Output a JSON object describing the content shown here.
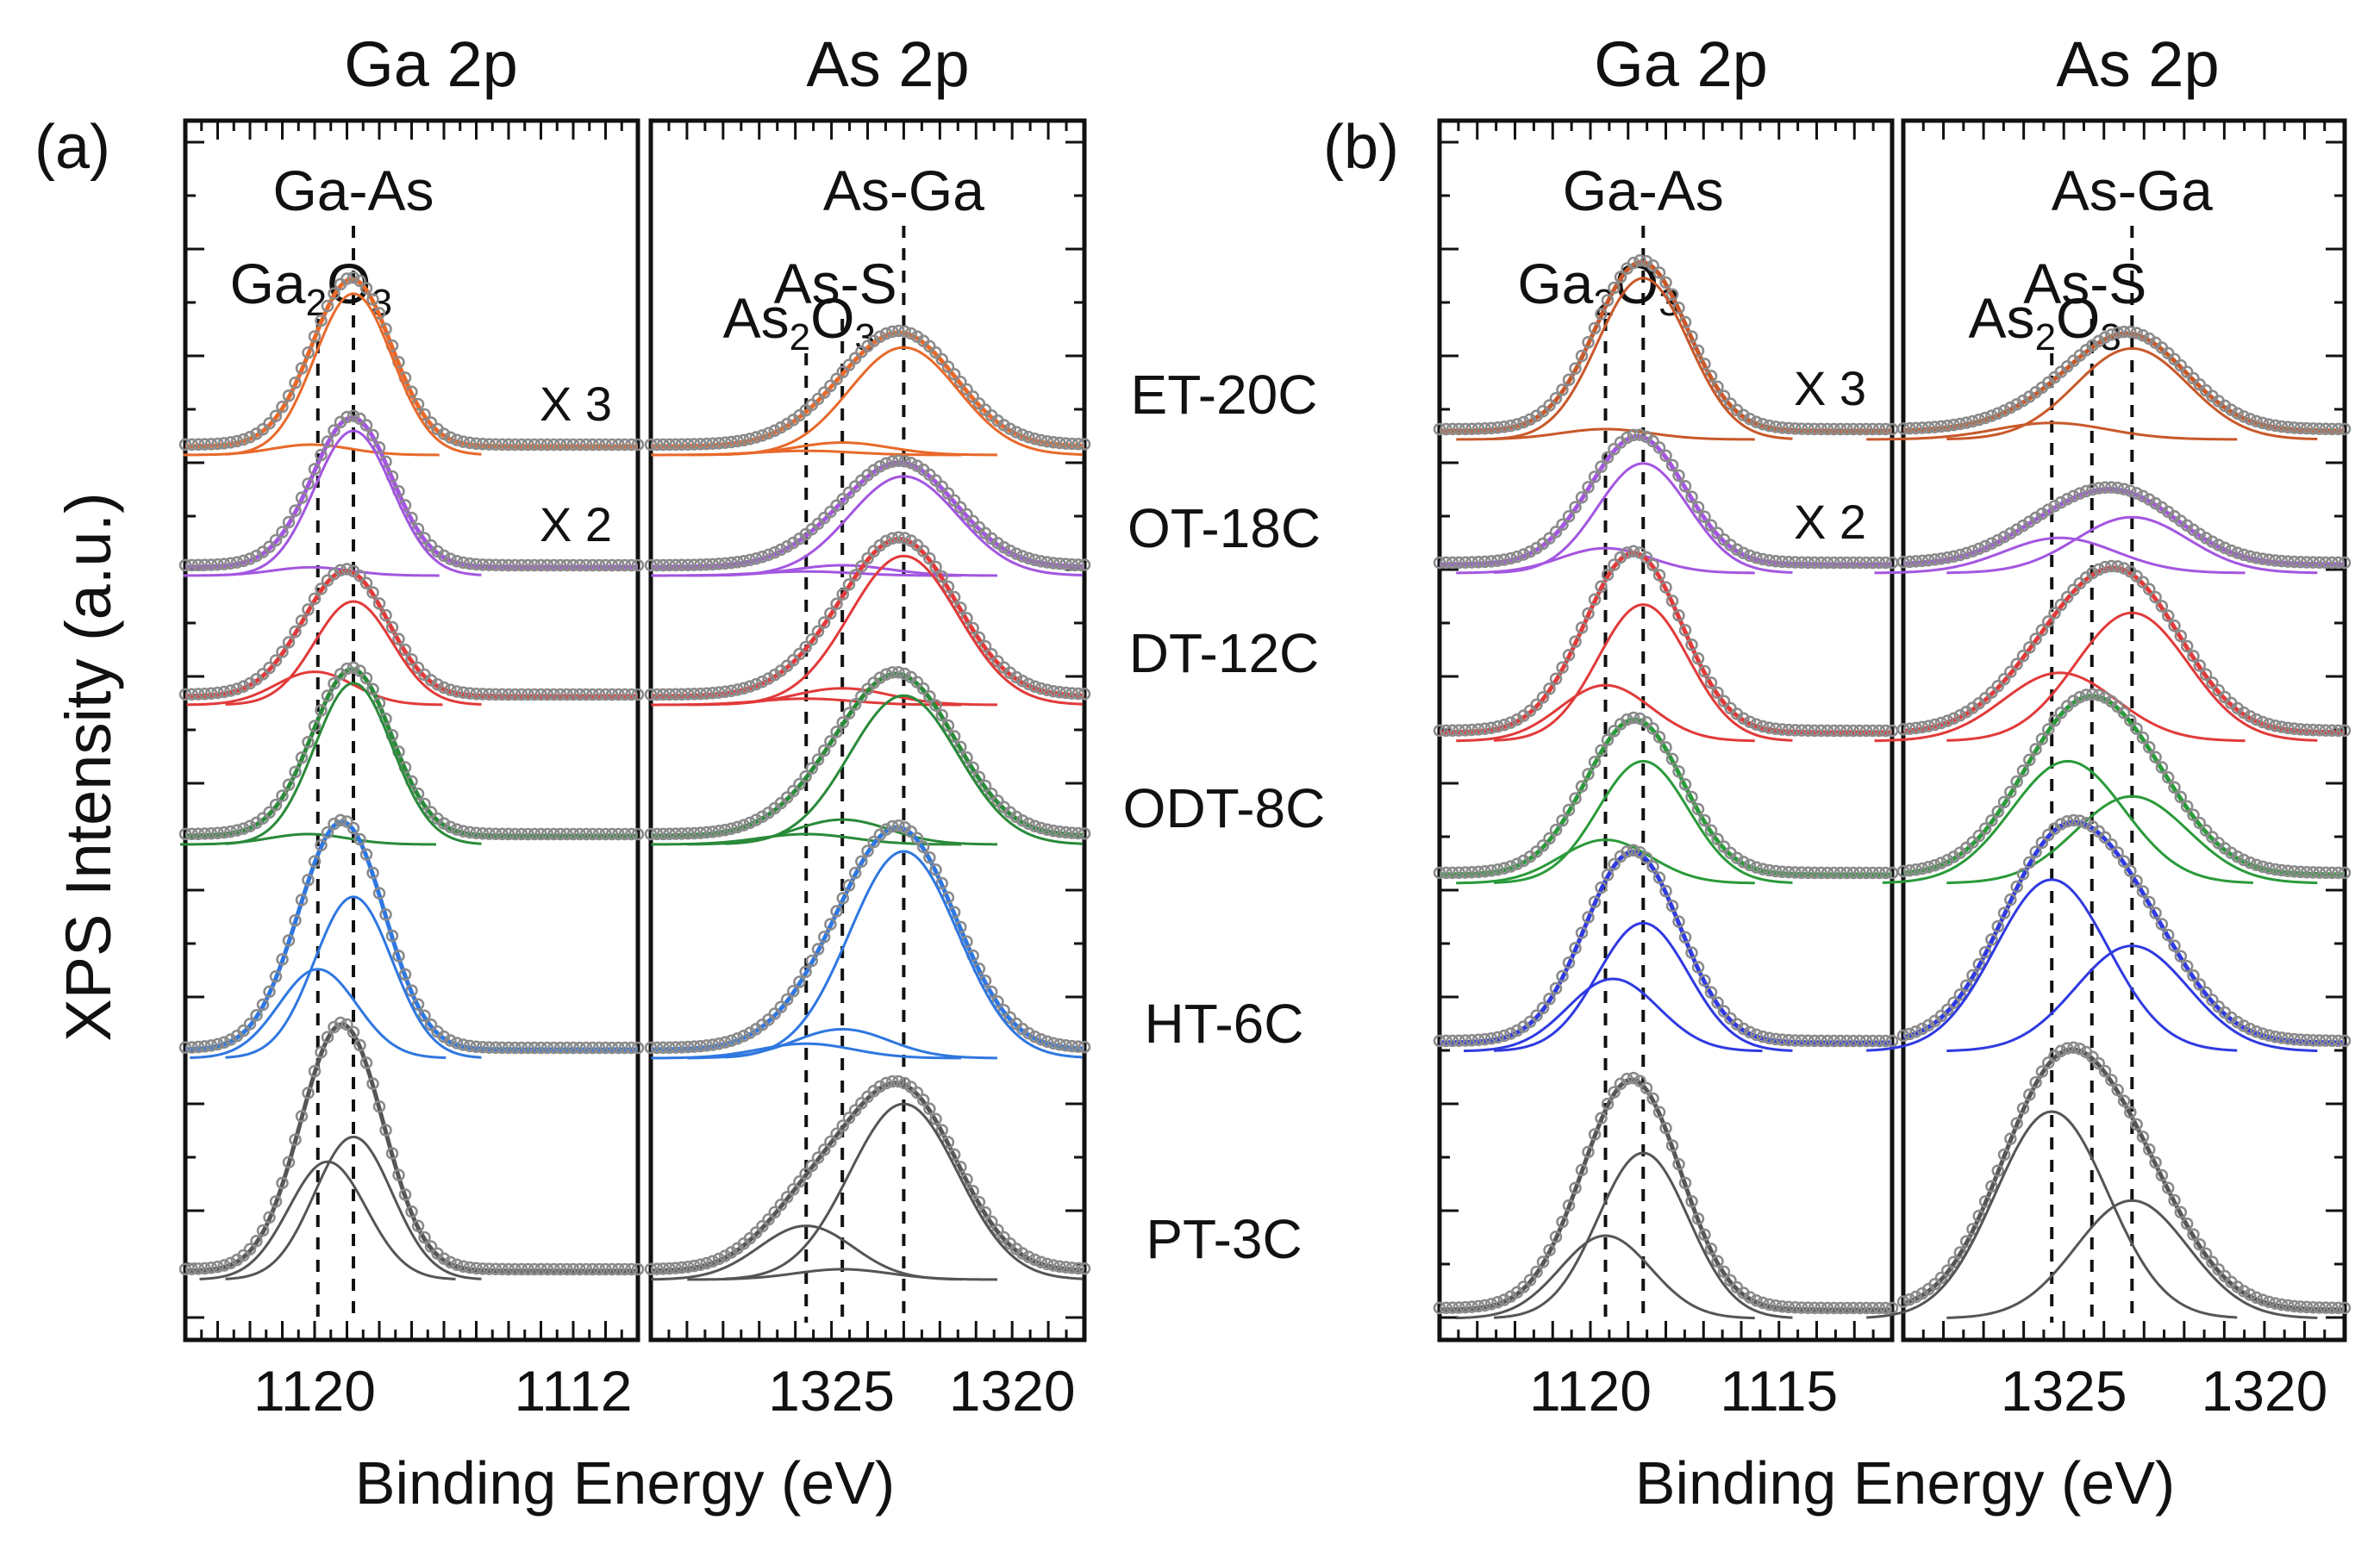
{
  "figure": {
    "ylabel": "XPS Intensity (a.u.)",
    "xlabel": "Binding Energy (eV)",
    "sample_labels": [
      "ET-20C",
      "OT-18C",
      "DT-12C",
      "ODT-8C",
      "HT-6C",
      "PT-3C"
    ],
    "panel_a": {
      "panel_label": "(a)",
      "ga_title": "Ga 2p",
      "as_title": "As 2p",
      "ga_peaks": [
        {
          "label": "Ga-As",
          "energy": 1118.8,
          "sub": ""
        },
        {
          "label": "Ga",
          "energy": 1119.9,
          "sub": "2",
          "label2": "O",
          "sub2": "3"
        }
      ],
      "as_peaks": [
        {
          "label": "As-Ga",
          "energy": 1323.0,
          "sub": ""
        },
        {
          "label": "As-S",
          "energy": 1324.7,
          "sub": ""
        },
        {
          "label": "As",
          "energy": 1325.7,
          "sub": "2",
          "label2": "O",
          "sub2": "3"
        }
      ],
      "ga_ticks": [
        "1120",
        "1112"
      ],
      "as_ticks": [
        "1325",
        "1320"
      ]
    },
    "panel_b": {
      "panel_label": "(b)",
      "ga_title": "Ga 2p",
      "as_title": "As 2p",
      "ga_peaks": [
        {
          "label": "Ga-As",
          "energy": 1118.6,
          "sub": ""
        },
        {
          "label": "Ga",
          "energy": 1119.6,
          "sub": "2",
          "label2": "O",
          "sub2": "3"
        }
      ],
      "as_peaks": [
        {
          "label": "As-Ga",
          "energy": 1323.3,
          "sub": ""
        },
        {
          "label": "As-S",
          "energy": 1324.3,
          "sub": ""
        },
        {
          "label": "As",
          "energy": 1325.3,
          "sub": "2",
          "label2": "O",
          "sub2": "3"
        }
      ],
      "ga_ticks": [
        "1120",
        "1115"
      ],
      "as_ticks": [
        "1325",
        "1320"
      ]
    }
  },
  "chart_data": [
    {
      "type": "line",
      "panel": "(a)",
      "title": "",
      "xlabel": "Binding Energy (eV)",
      "ylabel": "XPS Intensity (a.u.)",
      "subplots": [
        {
          "name": "Ga 2p",
          "xlim": [
            1124,
            1110
          ],
          "ticks": [
            1120,
            1112
          ]
        },
        {
          "name": "As 2p",
          "xlim": [
            1330,
            1318
          ],
          "ticks": [
            1325,
            1320
          ]
        }
      ],
      "series": [
        {
          "name": "ET-20C",
          "color": "#e8692a",
          "scale_label": "X 3",
          "ga_components": [
            {
              "center": 1118.8,
              "height": 0.78,
              "width": 1.2
            },
            {
              "center": 1120.1,
              "height": 0.05,
              "width": 1.2
            }
          ],
          "as_components": [
            {
              "center": 1323.0,
              "height": 0.52,
              "width": 1.5
            },
            {
              "center": 1324.7,
              "height": 0.06,
              "width": 1.3
            },
            {
              "center": 1325.7,
              "height": 0.02,
              "width": 1.3
            }
          ]
        },
        {
          "name": "OT-18C",
          "color": "#a356e0",
          "scale_label": "X 2",
          "ga_components": [
            {
              "center": 1118.8,
              "height": 0.7,
              "width": 1.2
            },
            {
              "center": 1120.1,
              "height": 0.04,
              "width": 1.2
            }
          ],
          "as_components": [
            {
              "center": 1323.0,
              "height": 0.48,
              "width": 1.5
            },
            {
              "center": 1324.7,
              "height": 0.05,
              "width": 1.3
            },
            {
              "center": 1325.7,
              "height": 0.02,
              "width": 1.3
            }
          ]
        },
        {
          "name": "DT-12C",
          "color": "#e13a3a",
          "scale_label": "",
          "ga_components": [
            {
              "center": 1118.8,
              "height": 0.5,
              "width": 1.2
            },
            {
              "center": 1120.0,
              "height": 0.16,
              "width": 1.2
            }
          ],
          "as_components": [
            {
              "center": 1323.0,
              "height": 0.72,
              "width": 1.5
            },
            {
              "center": 1324.7,
              "height": 0.08,
              "width": 1.3
            },
            {
              "center": 1325.7,
              "height": 0.03,
              "width": 1.3
            }
          ]
        },
        {
          "name": "ODT-8C",
          "color": "#2a8a3a",
          "scale_label": "",
          "ga_components": [
            {
              "center": 1118.8,
              "height": 0.78,
              "width": 1.2
            },
            {
              "center": 1120.2,
              "height": 0.05,
              "width": 1.2
            }
          ],
          "as_components": [
            {
              "center": 1323.0,
              "height": 0.72,
              "width": 1.5
            },
            {
              "center": 1324.7,
              "height": 0.12,
              "width": 1.3
            },
            {
              "center": 1325.7,
              "height": 0.05,
              "width": 1.3
            }
          ]
        },
        {
          "name": "HT-6C",
          "color": "#2f77e0",
          "scale_label": "",
          "ga_components": [
            {
              "center": 1118.8,
              "height": 0.78,
              "width": 1.2
            },
            {
              "center": 1119.9,
              "height": 0.43,
              "width": 1.2
            }
          ],
          "as_components": [
            {
              "center": 1323.0,
              "height": 1.0,
              "width": 1.5
            },
            {
              "center": 1324.7,
              "height": 0.14,
              "width": 1.3
            },
            {
              "center": 1325.7,
              "height": 0.07,
              "width": 1.3
            }
          ]
        },
        {
          "name": "PT-3C",
          "color": "#555555",
          "scale_label": "",
          "ga_components": [
            {
              "center": 1118.8,
              "height": 0.69,
              "width": 1.2
            },
            {
              "center": 1119.6,
              "height": 0.57,
              "width": 1.2
            }
          ],
          "as_components": [
            {
              "center": 1323.0,
              "height": 0.85,
              "width": 1.5
            },
            {
              "center": 1324.7,
              "height": 0.05,
              "width": 1.3
            },
            {
              "center": 1325.7,
              "height": 0.26,
              "width": 1.3
            }
          ]
        }
      ]
    },
    {
      "type": "line",
      "panel": "(b)",
      "title": "",
      "xlabel": "Binding Energy (eV)",
      "ylabel": "",
      "subplots": [
        {
          "name": "Ga 2p",
          "xlim": [
            1124,
            1112
          ],
          "ticks": [
            1120,
            1115
          ]
        },
        {
          "name": "As 2p",
          "xlim": [
            1329,
            1318
          ],
          "ticks": [
            1325,
            1320
          ]
        }
      ],
      "series": [
        {
          "name": "ET-20C",
          "color": "#c8582a",
          "scale_label": "X 3",
          "ga_components": [
            {
              "center": 1118.6,
              "height": 0.78,
              "width": 1.2
            },
            {
              "center": 1119.6,
              "height": 0.05,
              "width": 1.2
            }
          ],
          "as_components": [
            {
              "center": 1323.3,
              "height": 0.44,
              "width": 1.4
            },
            {
              "center": 1325.3,
              "height": 0.08,
              "width": 1.4
            }
          ]
        },
        {
          "name": "OT-18C",
          "color": "#a356e0",
          "scale_label": "X 2",
          "ga_components": [
            {
              "center": 1118.6,
              "height": 0.53,
              "width": 1.2
            },
            {
              "center": 1119.6,
              "height": 0.12,
              "width": 1.2
            }
          ],
          "as_components": [
            {
              "center": 1323.3,
              "height": 0.27,
              "width": 1.4
            },
            {
              "center": 1325.1,
              "height": 0.17,
              "width": 1.4
            }
          ]
        },
        {
          "name": "DT-12C",
          "color": "#e13a3a",
          "scale_label": "",
          "ga_components": [
            {
              "center": 1118.6,
              "height": 0.66,
              "width": 1.2
            },
            {
              "center": 1119.6,
              "height": 0.27,
              "width": 1.2
            }
          ],
          "as_components": [
            {
              "center": 1323.3,
              "height": 0.62,
              "width": 1.4
            },
            {
              "center": 1325.1,
              "height": 0.33,
              "width": 1.4
            }
          ]
        },
        {
          "name": "ODT-8C",
          "color": "#2a9a3a",
          "scale_label": "",
          "ga_components": [
            {
              "center": 1118.6,
              "height": 0.59,
              "width": 1.2
            },
            {
              "center": 1119.6,
              "height": 0.21,
              "width": 1.2
            }
          ],
          "as_components": [
            {
              "center": 1323.3,
              "height": 0.42,
              "width": 1.4
            },
            {
              "center": 1324.9,
              "height": 0.59,
              "width": 1.4
            }
          ]
        },
        {
          "name": "HT-6C",
          "color": "#2f3ae0",
          "scale_label": "",
          "ga_components": [
            {
              "center": 1118.6,
              "height": 0.62,
              "width": 1.2
            },
            {
              "center": 1119.4,
              "height": 0.35,
              "width": 1.2
            }
          ],
          "as_components": [
            {
              "center": 1323.3,
              "height": 0.51,
              "width": 1.4
            },
            {
              "center": 1325.3,
              "height": 0.83,
              "width": 1.4
            }
          ]
        },
        {
          "name": "PT-3C",
          "color": "#555555",
          "scale_label": "",
          "ga_components": [
            {
              "center": 1118.6,
              "height": 0.8,
              "width": 1.2
            },
            {
              "center": 1119.6,
              "height": 0.4,
              "width": 1.2
            }
          ],
          "as_components": [
            {
              "center": 1323.3,
              "height": 0.57,
              "width": 1.4
            },
            {
              "center": 1325.3,
              "height": 1.0,
              "width": 1.4
            }
          ]
        }
      ]
    }
  ]
}
